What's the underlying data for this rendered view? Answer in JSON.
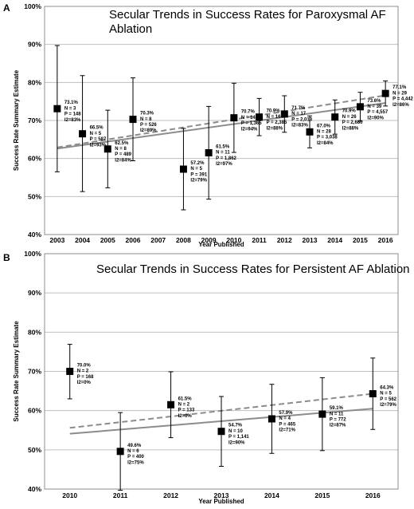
{
  "chart_data": [
    {
      "type": "scatter",
      "panel": "A",
      "title": "Secular Trends in Success Rates for Paroxysmal AF Ablation",
      "title_lines": [
        "Secular Trends in Success Rates for Paroxysmal AF",
        "Ablation"
      ],
      "xlabel": "Year Published",
      "ylabel": "Success Rate Summary Estimate",
      "ylim": [
        40,
        100
      ],
      "yticks": [
        "40%",
        "50%",
        "60%",
        "70%",
        "80%",
        "90%",
        "100%"
      ],
      "xticks": [
        "2003",
        "2004",
        "2005",
        "2006",
        "2007",
        "2008",
        "2009",
        "2010",
        "2011",
        "2012",
        "2013",
        "2014",
        "2015",
        "2016"
      ],
      "grid": true,
      "points": [
        {
          "x": "2003",
          "y": 73.1,
          "lo": 56.5,
          "hi": 89.7,
          "labels": [
            "73.1%",
            "N = 3",
            "P = 148",
            "I2=83%"
          ]
        },
        {
          "x": "2004",
          "y": 66.5,
          "lo": 51.3,
          "hi": 81.8,
          "labels": [
            "66.5%",
            "N = 5",
            "P = 587",
            "I2=93%"
          ]
        },
        {
          "x": "2005",
          "y": 62.5,
          "lo": 52.3,
          "hi": 72.7,
          "labels": [
            "62.5%",
            "N = 8",
            "P = 489",
            "I2=84%"
          ]
        },
        {
          "x": "2006",
          "y": 70.3,
          "lo": 59.4,
          "hi": 81.2,
          "labels": [
            "70.3%",
            "N = 8",
            "P = 526",
            "I2=89%"
          ]
        },
        {
          "x": "2008",
          "y": 57.2,
          "lo": 46.5,
          "hi": 67.9,
          "labels": [
            "57.2%",
            "N = 5",
            "P = 391",
            "I2=79%"
          ]
        },
        {
          "x": "2009",
          "y": 61.5,
          "lo": 49.3,
          "hi": 73.7,
          "labels": [
            "61.5%",
            "N = 11",
            "P = 1,862",
            "I2=97%"
          ]
        },
        {
          "x": "2010",
          "y": 70.7,
          "lo": 61.6,
          "hi": 79.8,
          "labels": [
            "70.7%",
            "N = 14",
            "P = 1,365",
            "I2=94%"
          ]
        },
        {
          "x": "2011",
          "y": 70.9,
          "lo": 66.0,
          "hi": 75.8,
          "labels": [
            "70.9%",
            "N = 16",
            "P = 2,385",
            "I2=88%"
          ]
        },
        {
          "x": "2012",
          "y": 71.7,
          "lo": 66.9,
          "hi": 76.5,
          "labels": [
            "71.7%",
            "N = 17",
            "P = 2,013",
            "I2=83%"
          ]
        },
        {
          "x": "2013",
          "y": 67.0,
          "lo": 62.8,
          "hi": 71.2,
          "labels": [
            "67.0%",
            "N = 28",
            "P = 3,038",
            "I2=84%"
          ]
        },
        {
          "x": "2014",
          "y": 70.9,
          "lo": 66.4,
          "hi": 75.4,
          "labels": [
            "70.9%",
            "N = 26",
            "P = 2,680",
            "I2=88%"
          ]
        },
        {
          "x": "2015",
          "y": 73.6,
          "lo": 69.8,
          "hi": 77.4,
          "labels": [
            "73.6%",
            "N = 39",
            "P = 4,557",
            "I2=90%"
          ]
        },
        {
          "x": "2016",
          "y": 77.1,
          "lo": 73.8,
          "hi": 80.4,
          "labels": [
            "77.1%",
            "N = 29",
            "P = 4,442",
            "I2=86%"
          ]
        }
      ],
      "trend_solid": [
        {
          "x": "2003",
          "y": 62.6
        },
        {
          "x": "2016",
          "y": 74.6
        }
      ],
      "trend_dashed": [
        {
          "x": "2003",
          "y": 62.9
        },
        {
          "x": "2016",
          "y": 76.6
        }
      ],
      "colors": {
        "marker": "#000000",
        "solid": "#8c8c8c",
        "dashed": "#8c8c8c",
        "grid": "#bfbfbf"
      }
    },
    {
      "type": "scatter",
      "panel": "B",
      "title": "Secular Trends in Success Rates for Persistent AF Ablation",
      "title_lines": [
        "Secular Trends in Success Rates for Persistent AF Ablation"
      ],
      "xlabel": "Year Published",
      "ylabel": "Success Rate Summary Estimate",
      "ylim": [
        40,
        100
      ],
      "yticks": [
        "40%",
        "50%",
        "60%",
        "70%",
        "80%",
        "90%",
        "100%"
      ],
      "xticks": [
        "2010",
        "2011",
        "2012",
        "2013",
        "2014",
        "2015",
        "2016"
      ],
      "grid": true,
      "points": [
        {
          "x": "2010",
          "y": 70.0,
          "lo": 63.0,
          "hi": 76.9,
          "labels": [
            "70.0%",
            "N = 2",
            "P = 168",
            "I2=0%"
          ]
        },
        {
          "x": "2011",
          "y": 49.6,
          "lo": 39.7,
          "hi": 59.5,
          "labels": [
            "49.6%",
            "N = 6",
            "P = 400",
            "I2=75%"
          ]
        },
        {
          "x": "2012",
          "y": 61.5,
          "lo": 53.1,
          "hi": 69.9,
          "labels": [
            "61.5%",
            "N = 2",
            "P = 133",
            "I2=0%"
          ]
        },
        {
          "x": "2013",
          "y": 54.7,
          "lo": 45.8,
          "hi": 63.6,
          "labels": [
            "54.7%",
            "N = 10",
            "P = 1,141",
            "I2=90%"
          ]
        },
        {
          "x": "2014",
          "y": 57.9,
          "lo": 49.1,
          "hi": 66.7,
          "labels": [
            "57.9%",
            "N = 4",
            "P = 465",
            "I2=71%"
          ]
        },
        {
          "x": "2015",
          "y": 59.1,
          "lo": 49.8,
          "hi": 68.4,
          "labels": [
            "59.1%",
            "N = 11",
            "P = 772",
            "I2=87%"
          ]
        },
        {
          "x": "2016",
          "y": 64.3,
          "lo": 55.2,
          "hi": 73.4,
          "labels": [
            "64.3%",
            "N = 5",
            "P = 562",
            "I2=79%"
          ]
        }
      ],
      "trend_solid": [
        {
          "x": "2010",
          "y": 54.1
        },
        {
          "x": "2016",
          "y": 60.5
        }
      ],
      "trend_dashed": [
        {
          "x": "2010",
          "y": 55.6
        },
        {
          "x": "2016",
          "y": 64.3
        }
      ],
      "colors": {
        "marker": "#000000",
        "solid": "#8c8c8c",
        "dashed": "#8c8c8c",
        "grid": "#bfbfbf"
      }
    }
  ]
}
